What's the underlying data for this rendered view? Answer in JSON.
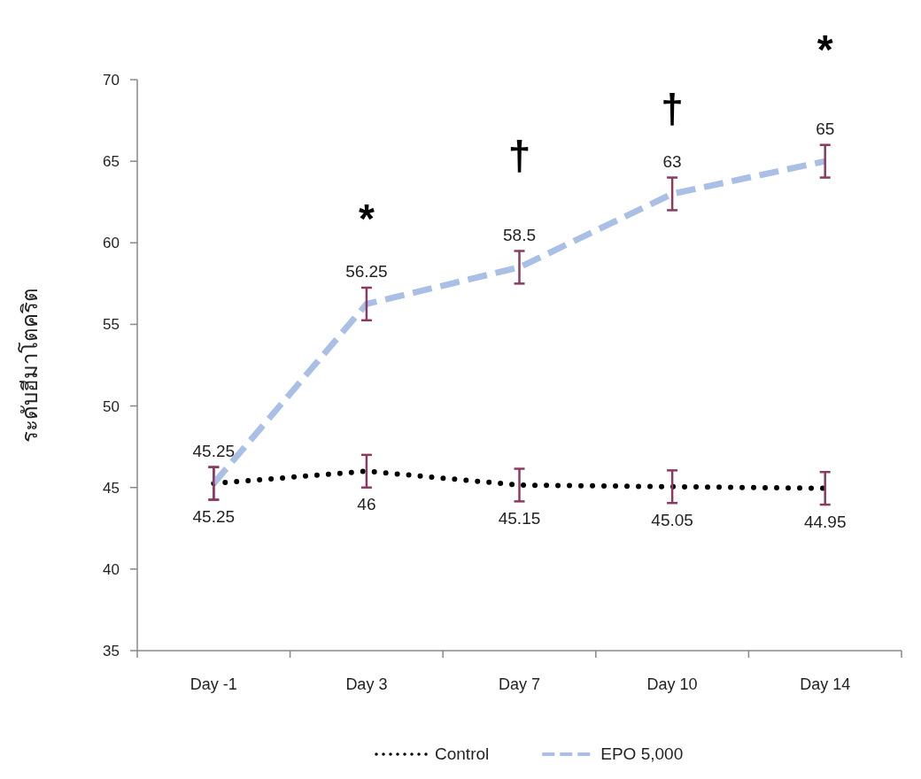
{
  "chart_data": {
    "type": "line",
    "ylabel": "ระดับฮีมาโตคริต",
    "categories": [
      "Day -1",
      "Day 3",
      "Day 7",
      "Day 10",
      "Day 14"
    ],
    "ylim": [
      35,
      70
    ],
    "yticks": [
      35,
      40,
      45,
      50,
      55,
      60,
      65,
      70
    ],
    "legend": "bottom",
    "data_labels": true,
    "marker": "none",
    "series": [
      {
        "name": "Control",
        "color": "#000000",
        "line_style": "dotted",
        "values": [
          45.25,
          46,
          45.15,
          45.05,
          44.95
        ],
        "errors": [
          1,
          1,
          1,
          1,
          1
        ]
      },
      {
        "name": "EPO 5,000",
        "color": "#a9bfe6",
        "line_style": "dashed",
        "values": [
          45.25,
          56.25,
          58.5,
          63,
          65
        ],
        "errors": [
          1,
          1,
          1,
          1,
          1
        ]
      }
    ],
    "annotations": [
      "*",
      "†",
      "†",
      "*"
    ]
  }
}
